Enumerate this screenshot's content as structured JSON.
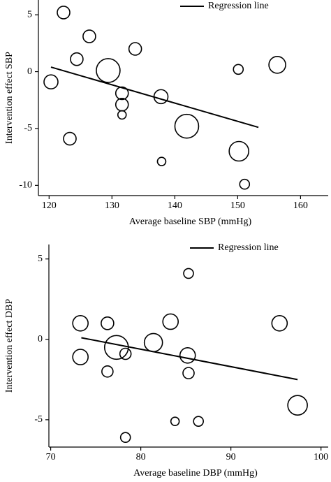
{
  "chart_data": [
    {
      "type": "scatter",
      "x_label": "Average baseline SBP (mmHg)",
      "y_label": "Intervention effect SBP",
      "x": [
        122.3,
        126.4,
        124.4,
        133.7,
        129.4,
        120.3,
        131.6,
        131.6,
        131.6,
        137.8,
        123.3,
        141.9,
        150.1,
        156.3,
        150.2,
        137.9,
        151.1
      ],
      "values": [
        5.2,
        3.1,
        1.1,
        2.0,
        0.1,
        -0.9,
        -1.9,
        -2.9,
        -3.8,
        -2.2,
        -5.9,
        -4.8,
        0.2,
        0.6,
        -7.0,
        -7.9,
        -9.9
      ],
      "sizes": [
        9,
        9,
        9,
        9,
        17,
        10,
        9,
        9,
        6,
        10,
        9,
        17,
        7,
        12,
        14,
        6,
        7
      ],
      "regression": {
        "name": "Regression line",
        "x": [
          120.3,
          153.3
        ],
        "values": [
          0.4,
          -4.9
        ]
      },
      "xlim": [
        118.3,
        164.4
      ],
      "ylim": [
        -10.9,
        6.3
      ],
      "xticks": [
        120,
        130,
        140,
        150,
        160
      ],
      "yticks": [
        -10,
        -5,
        0,
        5
      ]
    },
    {
      "type": "scatter",
      "x_label": "Average baseline DBP  (mmHg)",
      "y_label": "Intervention effect DBP",
      "x": [
        73.3,
        76.3,
        83.3,
        95.4,
        85.3,
        77.3,
        81.4,
        78.3,
        73.3,
        76.3,
        85.2,
        85.3,
        97.4,
        83.8,
        86.4,
        78.3
      ],
      "values": [
        1.0,
        1.0,
        1.1,
        1.0,
        4.1,
        -0.5,
        -0.2,
        -0.9,
        -1.1,
        -2.0,
        -1.0,
        -2.1,
        -4.1,
        -5.1,
        -5.1,
        -6.1
      ],
      "sizes": [
        11,
        9,
        11,
        11,
        7,
        17,
        13,
        8,
        11,
        8,
        11,
        8,
        14,
        6,
        7,
        7
      ],
      "regression": {
        "name": "Regression line",
        "x": [
          73.4,
          97.4
        ],
        "values": [
          0.1,
          -2.5
        ]
      },
      "xlim": [
        69.8,
        100.8
      ],
      "ylim": [
        -6.7,
        5.9
      ],
      "xticks": [
        70,
        80,
        90,
        100
      ],
      "yticks": [
        -5,
        0,
        5
      ]
    }
  ]
}
